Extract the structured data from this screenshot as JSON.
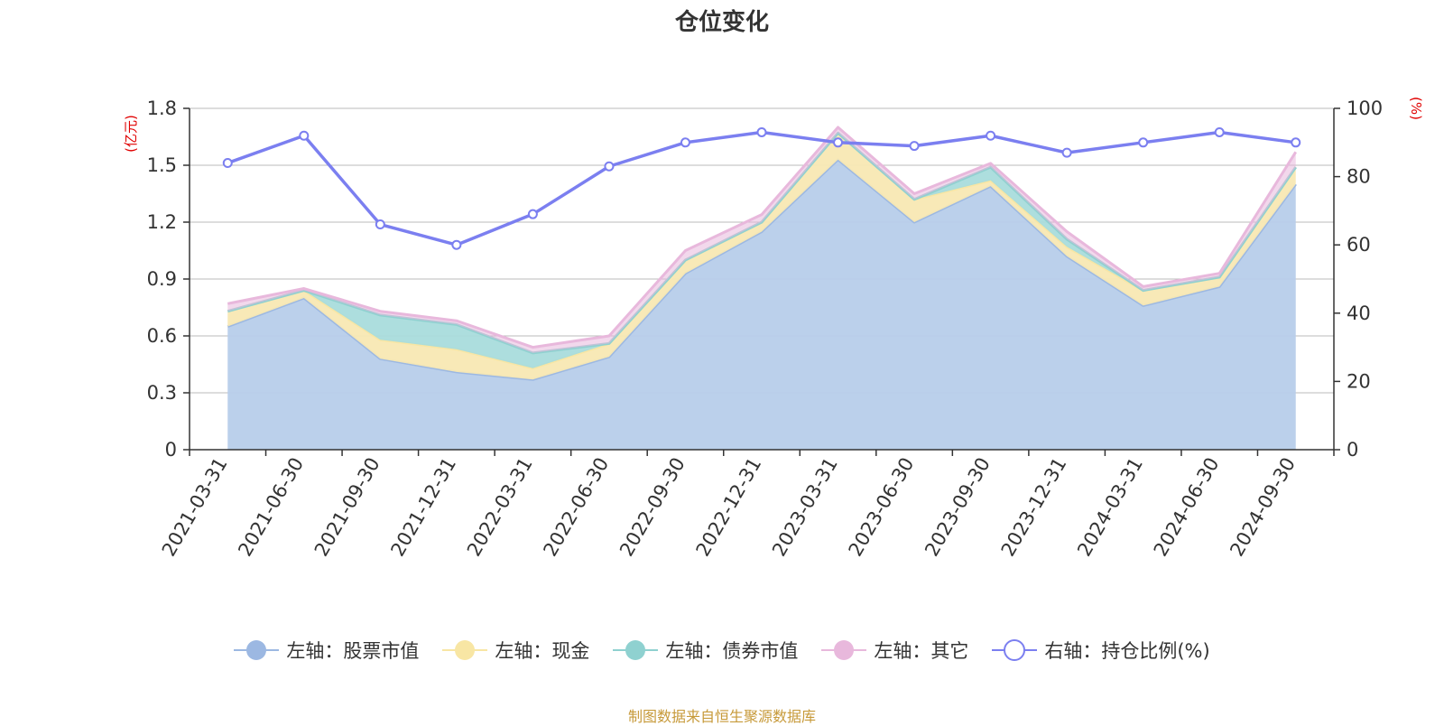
{
  "title": "仓位变化",
  "source_note": "制图数据来自恒生聚源数据库",
  "colors": {
    "stock": "#9cb8e2",
    "stock_fill": "#b7cdea",
    "cash": "#f8e6a4",
    "cash_fill": "#f8e8b3",
    "bond": "#8fd1d0",
    "bond_fill": "#a9dcdc",
    "other": "#e8b8dc",
    "ratio": "#7b7ff0",
    "axis_name": "#e00000",
    "grid": "#bbbbbb",
    "axis": "#333333",
    "text": "#333333"
  },
  "chart_data": {
    "type": "area",
    "categories": [
      "2021-03-31",
      "2021-06-30",
      "2021-09-30",
      "2021-12-31",
      "2022-03-31",
      "2022-06-30",
      "2022-09-30",
      "2022-12-31",
      "2023-03-31",
      "2023-06-30",
      "2023-09-30",
      "2023-12-31",
      "2024-03-31",
      "2024-06-30",
      "2024-09-30"
    ],
    "left_axis": {
      "name": "(亿元)",
      "min": 0,
      "max": 1.8,
      "ticks": [
        0,
        0.3,
        0.6,
        0.9,
        1.2,
        1.5,
        1.8
      ],
      "tick_labels": [
        "0",
        "0.3",
        "0.6",
        "0.9",
        "1.2",
        "1.5",
        "1.8"
      ]
    },
    "right_axis": {
      "name": "(%)",
      "min": 0,
      "max": 100,
      "ticks": [
        0,
        20,
        40,
        60,
        80,
        100
      ],
      "tick_labels": [
        "0",
        "20",
        "40",
        "60",
        "80",
        "100"
      ]
    },
    "series": [
      {
        "name": "左轴：股票市值",
        "key": "stock",
        "type": "area",
        "axis": "left",
        "stack": true,
        "values": [
          0.65,
          0.8,
          0.48,
          0.41,
          0.37,
          0.49,
          0.93,
          1.15,
          1.53,
          1.2,
          1.39,
          1.02,
          0.76,
          0.86,
          1.4
        ]
      },
      {
        "name": "左轴：现金",
        "key": "cash",
        "type": "area",
        "axis": "left",
        "stack": true,
        "values": [
          0.08,
          0.04,
          0.1,
          0.12,
          0.06,
          0.07,
          0.07,
          0.05,
          0.14,
          0.12,
          0.03,
          0.05,
          0.08,
          0.05,
          0.09
        ]
      },
      {
        "name": "左轴：债券市值",
        "key": "bond",
        "type": "area",
        "axis": "left",
        "stack": true,
        "values": [
          0,
          0,
          0.13,
          0.13,
          0.08,
          0,
          0,
          0,
          0,
          0,
          0.07,
          0.04,
          0,
          0,
          0
        ]
      },
      {
        "name": "左轴：其它",
        "key": "other",
        "type": "area",
        "axis": "left",
        "stack": true,
        "values": [
          0.04,
          0.01,
          0.02,
          0.02,
          0.03,
          0.04,
          0.05,
          0.04,
          0.03,
          0.03,
          0.02,
          0.04,
          0.02,
          0.02,
          0.08
        ]
      },
      {
        "name": "右轴：持仓比例(%)",
        "key": "ratio",
        "type": "line",
        "axis": "right",
        "values": [
          84,
          92,
          66,
          60,
          69,
          83,
          90,
          93,
          90,
          89,
          92,
          87,
          90,
          93,
          90
        ]
      }
    ],
    "legend_position": "bottom-center",
    "grid": true
  }
}
